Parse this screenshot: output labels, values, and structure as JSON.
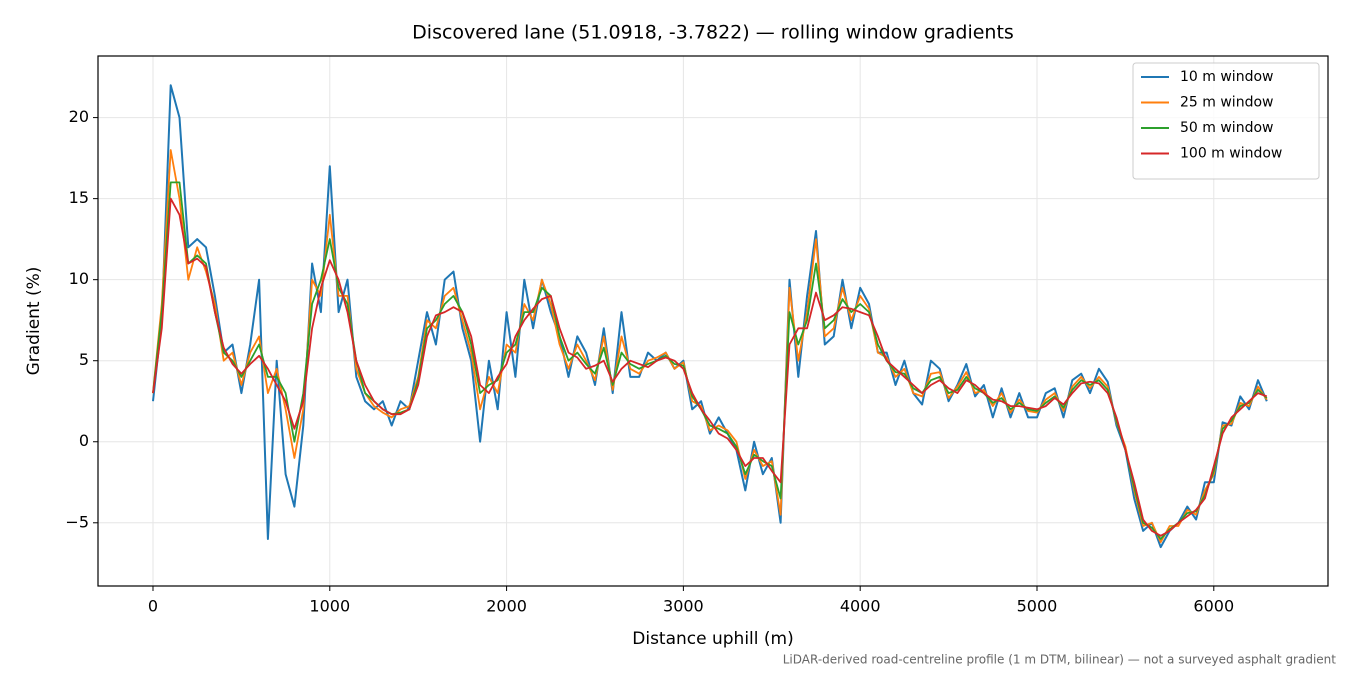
{
  "chart_data": {
    "type": "line",
    "title": "Discovered lane (51.0918, -3.7822) — rolling window gradients",
    "xlabel": "Distance uphill (m)",
    "ylabel": "Gradient (%)",
    "footnote": "LiDAR-derived road-centreline profile (1 m DTM, bilinear) — not a surveyed asphalt gradient",
    "x": [
      0,
      50,
      100,
      150,
      200,
      250,
      300,
      350,
      400,
      450,
      500,
      550,
      600,
      650,
      700,
      750,
      800,
      850,
      900,
      950,
      1000,
      1050,
      1100,
      1150,
      1200,
      1250,
      1300,
      1350,
      1400,
      1450,
      1500,
      1550,
      1600,
      1650,
      1700,
      1750,
      1800,
      1850,
      1900,
      1950,
      2000,
      2050,
      2100,
      2150,
      2200,
      2250,
      2300,
      2350,
      2400,
      2450,
      2500,
      2550,
      2600,
      2650,
      2700,
      2750,
      2800,
      2850,
      2900,
      2950,
      3000,
      3050,
      3100,
      3150,
      3200,
      3250,
      3300,
      3350,
      3400,
      3450,
      3500,
      3550,
      3600,
      3650,
      3700,
      3750,
      3800,
      3850,
      3900,
      3950,
      4000,
      4050,
      4100,
      4150,
      4200,
      4250,
      4300,
      4350,
      4400,
      4450,
      4500,
      4550,
      4600,
      4650,
      4700,
      4750,
      4800,
      4850,
      4900,
      4950,
      5000,
      5050,
      5100,
      5150,
      5200,
      5250,
      5300,
      5350,
      5400,
      5450,
      5500,
      5550,
      5600,
      5650,
      5700,
      5750,
      5800,
      5850,
      5900,
      5950,
      6000,
      6050,
      6100,
      6150,
      6200,
      6250,
      6300
    ],
    "series": [
      {
        "name": "10 m window",
        "color": "#1f77b4",
        "values": [
          2.5,
          7.5,
          22,
          20,
          12,
          12.5,
          12,
          9,
          5.5,
          6,
          3,
          6,
          10,
          -6,
          5,
          -2,
          -4,
          1,
          11,
          8,
          17,
          8,
          10,
          4,
          2.5,
          2,
          2.5,
          1,
          2.5,
          2,
          5,
          8,
          6,
          10,
          10.5,
          7,
          5,
          0,
          5,
          2,
          8,
          4,
          10,
          7,
          10,
          8,
          6.5,
          4,
          6.5,
          5.5,
          3.5,
          7,
          3,
          8,
          4,
          4,
          5.5,
          5,
          5.5,
          4.5,
          5,
          2,
          2.5,
          0.5,
          1.5,
          0.5,
          -0.5,
          -3,
          0,
          -2,
          -1,
          -5,
          10,
          4,
          9,
          13,
          6,
          6.5,
          10,
          7,
          9.5,
          8.5,
          5.5,
          5.5,
          3.5,
          5,
          3,
          2.3,
          5,
          4.5,
          2.5,
          3.5,
          4.8,
          2.8,
          3.5,
          1.5,
          3.3,
          1.5,
          3,
          1.5,
          1.5,
          3,
          3.3,
          1.5,
          3.8,
          4.2,
          3,
          4.5,
          3.7,
          1,
          -0.5,
          -3.5,
          -5.5,
          -5,
          -6.5,
          -5.5,
          -5,
          -4,
          -4.8,
          -2.5,
          -2.5,
          1.2,
          1,
          2.8,
          2,
          3.8,
          2.5
        ]
      },
      {
        "name": "25 m window",
        "color": "#ff7f0e",
        "values": [
          3,
          8.5,
          18,
          15,
          10,
          12,
          10.5,
          8.5,
          5,
          5.5,
          3.5,
          5.5,
          6.5,
          3,
          4.5,
          2,
          -1,
          2,
          10,
          9,
          14,
          9,
          9,
          4.5,
          3,
          2.2,
          1.8,
          1.5,
          2,
          2.2,
          4,
          7.5,
          7,
          9,
          9.5,
          7.5,
          5.5,
          2,
          4,
          3,
          6,
          5.5,
          8.5,
          7.5,
          10,
          8.5,
          6,
          4.5,
          6,
          5,
          3.8,
          6.5,
          3.2,
          6.5,
          4.5,
          4.2,
          5,
          5.2,
          5.5,
          4.5,
          4.9,
          2.5,
          2.2,
          0.7,
          1,
          0.7,
          0,
          -2.3,
          -0.5,
          -1.5,
          -1.2,
          -4.5,
          9.5,
          5,
          8,
          12.5,
          6.5,
          7,
          9.5,
          7.5,
          9,
          8.2,
          5.5,
          5.2,
          4,
          4.5,
          3,
          2.8,
          4.2,
          4.3,
          2.7,
          3.4,
          4.3,
          3,
          3.2,
          2.2,
          3,
          1.8,
          2.6,
          1.9,
          1.8,
          2.6,
          3,
          1.9,
          3.4,
          4,
          3.3,
          4,
          3.4,
          1.2,
          -0.3,
          -3,
          -5.2,
          -5,
          -6.2,
          -5.2,
          -5.2,
          -4.2,
          -4.5,
          -3,
          -2,
          1,
          1.1,
          2.4,
          2.2,
          3.4,
          2.6
        ]
      },
      {
        "name": "50 m window",
        "color": "#2ca02c",
        "values": [
          3,
          8,
          16,
          16,
          11,
          11.5,
          11,
          8,
          5.5,
          5,
          4,
          5,
          6,
          4,
          4,
          3,
          0,
          3,
          8.5,
          10,
          12.5,
          9.5,
          8.5,
          5,
          3,
          2.5,
          2,
          1.7,
          1.8,
          2,
          3.8,
          7,
          7.5,
          8.5,
          9,
          8,
          6,
          3,
          3.5,
          3.8,
          5.5,
          6,
          8,
          8,
          9.5,
          9,
          6.5,
          5,
          5.5,
          4.8,
          4.2,
          5.8,
          3.5,
          5.5,
          4.8,
          4.5,
          4.8,
          5,
          5.3,
          4.8,
          4.7,
          2.8,
          2,
          1,
          0.8,
          0.5,
          -0.3,
          -2,
          -0.8,
          -1.2,
          -1.5,
          -3.5,
          8,
          6,
          7.5,
          11,
          7,
          7.5,
          8.8,
          8,
          8.5,
          8,
          6,
          5,
          4.3,
          4.2,
          3.3,
          3,
          3.8,
          4,
          3,
          3.2,
          4,
          3.3,
          3,
          2.4,
          2.7,
          2,
          2.4,
          2,
          1.9,
          2.4,
          2.8,
          2.1,
          3.2,
          3.8,
          3.5,
          3.8,
          3.2,
          1.3,
          -0.5,
          -2.8,
          -5,
          -5.3,
          -6,
          -5.4,
          -5,
          -4.4,
          -4.3,
          -3.3,
          -1.8,
          0.8,
          1.3,
          2.2,
          2.4,
          3.2,
          2.7
        ]
      },
      {
        "name": "100 m window",
        "color": "#d62728",
        "values": [
          3,
          7,
          15,
          14,
          11,
          11.3,
          10.8,
          8,
          5.8,
          4.8,
          4.2,
          4.8,
          5.3,
          4.5,
          3.5,
          2.5,
          0.8,
          2.5,
          7,
          9.5,
          11.2,
          10,
          8,
          5,
          3.5,
          2.5,
          2,
          1.7,
          1.7,
          2,
          3.5,
          6.5,
          7.8,
          8,
          8.3,
          8,
          6.5,
          3.5,
          3,
          4,
          4.8,
          6.5,
          7.5,
          8.2,
          8.8,
          9,
          7,
          5.5,
          5.2,
          4.5,
          4.7,
          5,
          3.7,
          4.5,
          5,
          4.8,
          4.6,
          5,
          5.2,
          5,
          4.5,
          3,
          2,
          1.3,
          0.5,
          0.2,
          -0.5,
          -1.5,
          -1,
          -1,
          -1.8,
          -2.5,
          6,
          7,
          7,
          9.2,
          7.5,
          7.8,
          8.3,
          8.2,
          8,
          7.8,
          6.5,
          5,
          4.5,
          4,
          3.5,
          3,
          3.5,
          3.8,
          3.3,
          3,
          3.8,
          3.5,
          3,
          2.6,
          2.5,
          2.2,
          2.2,
          2.1,
          2,
          2.2,
          2.7,
          2.3,
          3,
          3.6,
          3.7,
          3.6,
          3,
          1.5,
          -0.5,
          -2.5,
          -4.8,
          -5.5,
          -5.8,
          -5.5,
          -5,
          -4.6,
          -4.2,
          -3.5,
          -1.5,
          0.5,
          1.5,
          2,
          2.5,
          3,
          2.8
        ]
      }
    ],
    "xlim": [
      -311,
      6646
    ],
    "ylim": [
      -8.9,
      23.8
    ],
    "xticks": [
      0,
      1000,
      2000,
      3000,
      4000,
      5000,
      6000
    ],
    "yticks": [
      {
        "value": -5,
        "label": "−5"
      },
      0,
      5,
      10,
      15,
      20
    ],
    "grid": true,
    "legend": "upper right"
  }
}
